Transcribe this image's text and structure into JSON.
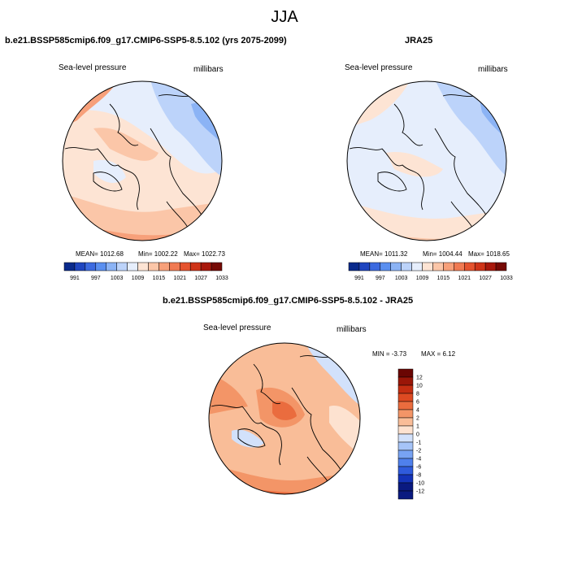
{
  "figure": {
    "season_title": "JJA"
  },
  "colors": {
    "levels_top": [
      "#0a2a8c",
      "#1f45c0",
      "#3c6ae0",
      "#5a8ff0",
      "#8bb3f5",
      "#bcd3fa",
      "#e6eefc",
      "#fde4d4",
      "#fbc6a8",
      "#f7a07a",
      "#f07a52",
      "#e5532e",
      "#cf3418",
      "#a8180c",
      "#760a05"
    ],
    "levels_diff": [
      "#0a1a80",
      "#1433b8",
      "#2f5bdc",
      "#4f80ec",
      "#78a3f3",
      "#a6c4f8",
      "#d2e1fb",
      "#fde2d0",
      "#f9bd98",
      "#f39567",
      "#ea6c3e",
      "#dd4a22",
      "#c42e12",
      "#9a1608",
      "#6a0603"
    ]
  },
  "panels": [
    {
      "title": "b.e21.BSSP585cmip6.f09_g17.CMIP6-SSP5-8.5.102 (yrs 2075-2099)",
      "left_label": "Sea-level pressure",
      "right_label": "millibars",
      "stats": {
        "mean": "MEAN= 1012.68",
        "min": "Min= 1002.22",
        "max": "Max= 1022.73"
      },
      "colorbar_ticks": [
        "991",
        "997",
        "1003",
        "1009",
        "1015",
        "1021",
        "1027",
        "1033"
      ]
    },
    {
      "title": "JRA25",
      "left_label": "Sea-level pressure",
      "right_label": "millibars",
      "stats": {
        "mean": "MEAN= 1011.32",
        "min": "Min= 1004.44",
        "max": "Max= 1018.65"
      },
      "colorbar_ticks": [
        "991",
        "997",
        "1003",
        "1009",
        "1015",
        "1021",
        "1027",
        "1033"
      ]
    },
    {
      "title": "b.e21.BSSP585cmip6.f09_g17.CMIP6-SSP5-8.5.102 - JRA25",
      "left_label": "Sea-level pressure",
      "right_label": "millibars",
      "stats": {
        "min": "MIN =  -3.73",
        "max": "MAX =   6.12"
      },
      "colorbar_ticks": [
        "12",
        "10",
        "8",
        "6",
        "4",
        "2",
        "1",
        "0",
        "-1",
        "-2",
        "-4",
        "-6",
        "-8",
        "-10",
        "-12"
      ]
    }
  ],
  "chart_data": [
    {
      "type": "heatmap",
      "title": "b.e21.BSSP585cmip6.f09_g17.CMIP6-SSP5-8.5.102 (yrs 2075-2099)",
      "variable": "Sea-level pressure",
      "units": "millibars",
      "mean": 1012.68,
      "min": 1002.22,
      "max": 1022.73,
      "contour_levels": [
        991,
        994,
        997,
        1000,
        1003,
        1006,
        1009,
        1012,
        1015,
        1018,
        1021,
        1024,
        1027,
        1030,
        1033
      ]
    },
    {
      "type": "heatmap",
      "title": "JRA25",
      "variable": "Sea-level pressure",
      "units": "millibars",
      "mean": 1011.32,
      "min": 1004.44,
      "max": 1018.65,
      "contour_levels": [
        991,
        994,
        997,
        1000,
        1003,
        1006,
        1009,
        1012,
        1015,
        1018,
        1021,
        1024,
        1027,
        1030,
        1033
      ]
    },
    {
      "type": "heatmap",
      "title": "b.e21.BSSP585cmip6.f09_g17.CMIP6-SSP5-8.5.102 - JRA25",
      "variable": "Sea-level pressure",
      "units": "millibars",
      "min": -3.73,
      "max": 6.12,
      "contour_levels": [
        -12,
        -10,
        -8,
        -6,
        -4,
        -2,
        -1,
        0,
        1,
        2,
        4,
        6,
        8,
        10,
        12
      ]
    }
  ]
}
